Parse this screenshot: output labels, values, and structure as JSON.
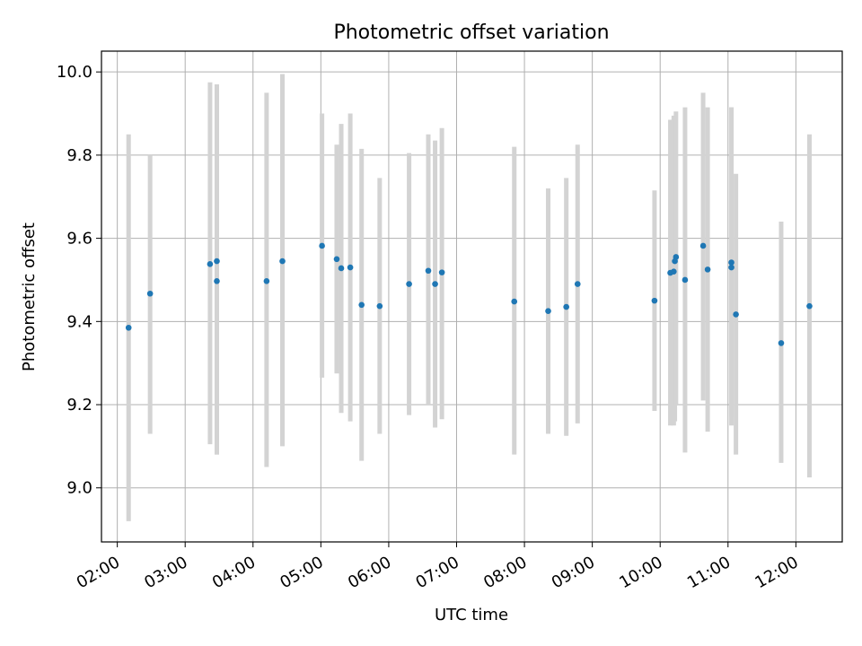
{
  "chart_data": {
    "type": "scatter",
    "title": "Photometric offset variation",
    "xlabel": "UTC time",
    "ylabel": "Photometric offset",
    "x_unit": "UTC time (HH:MM)",
    "xlim": [
      "01:46",
      "12:41"
    ],
    "ylim": [
      8.87,
      10.05
    ],
    "x_ticks": [
      "02:00",
      "03:00",
      "04:00",
      "05:00",
      "06:00",
      "07:00",
      "08:00",
      "09:00",
      "10:00",
      "11:00",
      "12:00"
    ],
    "y_ticks": [
      9.0,
      9.2,
      9.4,
      9.6,
      9.8,
      10.0
    ],
    "y_tick_labels": [
      "9.0",
      "9.2",
      "9.4",
      "9.6",
      "9.8",
      "10.0"
    ],
    "grid": true,
    "error_bar_color": "#d3d3d3",
    "marker_color": "#1f77b4",
    "points": [
      {
        "t": "02:10",
        "y": 9.385,
        "lo": 8.92,
        "hi": 9.85
      },
      {
        "t": "02:29",
        "y": 9.467,
        "lo": 9.13,
        "hi": 9.8
      },
      {
        "t": "03:22",
        "y": 9.538,
        "lo": 9.105,
        "hi": 9.975
      },
      {
        "t": "03:28",
        "y": 9.545,
        "lo": 9.08,
        "hi": 9.97
      },
      {
        "t": "03:28",
        "y": 9.497,
        "lo": 9.08,
        "hi": 9.97
      },
      {
        "t": "04:12",
        "y": 9.497,
        "lo": 9.05,
        "hi": 9.95
      },
      {
        "t": "04:26",
        "y": 9.545,
        "lo": 9.1,
        "hi": 9.995
      },
      {
        "t": "05:01",
        "y": 9.582,
        "lo": 9.265,
        "hi": 9.9
      },
      {
        "t": "05:14",
        "y": 9.55,
        "lo": 9.275,
        "hi": 9.825
      },
      {
        "t": "05:18",
        "y": 9.528,
        "lo": 9.18,
        "hi": 9.875
      },
      {
        "t": "05:26",
        "y": 9.53,
        "lo": 9.16,
        "hi": 9.9
      },
      {
        "t": "05:36",
        "y": 9.44,
        "lo": 9.065,
        "hi": 9.815
      },
      {
        "t": "05:52",
        "y": 9.437,
        "lo": 9.13,
        "hi": 9.745
      },
      {
        "t": "06:18",
        "y": 9.49,
        "lo": 9.175,
        "hi": 9.805
      },
      {
        "t": "06:35",
        "y": 9.522,
        "lo": 9.2,
        "hi": 9.85
      },
      {
        "t": "06:41",
        "y": 9.49,
        "lo": 9.145,
        "hi": 9.835
      },
      {
        "t": "06:47",
        "y": 9.518,
        "lo": 9.165,
        "hi": 9.865
      },
      {
        "t": "07:51",
        "y": 9.448,
        "lo": 9.08,
        "hi": 9.82
      },
      {
        "t": "08:21",
        "y": 9.425,
        "lo": 9.13,
        "hi": 9.72
      },
      {
        "t": "08:37",
        "y": 9.435,
        "lo": 9.125,
        "hi": 9.745
      },
      {
        "t": "08:47",
        "y": 9.49,
        "lo": 9.155,
        "hi": 9.825
      },
      {
        "t": "09:55",
        "y": 9.45,
        "lo": 9.185,
        "hi": 9.715
      },
      {
        "t": "10:09",
        "y": 9.517,
        "lo": 9.15,
        "hi": 9.885
      },
      {
        "t": "10:12",
        "y": 9.52,
        "lo": 9.15,
        "hi": 9.895
      },
      {
        "t": "10:13",
        "y": 9.545,
        "lo": 9.16,
        "hi": 9.89
      },
      {
        "t": "10:14",
        "y": 9.555,
        "lo": 9.2,
        "hi": 9.905
      },
      {
        "t": "10:22",
        "y": 9.5,
        "lo": 9.085,
        "hi": 9.915
      },
      {
        "t": "10:38",
        "y": 9.582,
        "lo": 9.21,
        "hi": 9.95
      },
      {
        "t": "10:42",
        "y": 9.525,
        "lo": 9.135,
        "hi": 9.915
      },
      {
        "t": "11:03",
        "y": 9.53,
        "lo": 9.15,
        "hi": 9.915
      },
      {
        "t": "11:03",
        "y": 9.542,
        "lo": 9.17,
        "hi": 9.915
      },
      {
        "t": "11:07",
        "y": 9.417,
        "lo": 9.08,
        "hi": 9.755
      },
      {
        "t": "11:47",
        "y": 9.348,
        "lo": 9.06,
        "hi": 9.64
      },
      {
        "t": "12:12",
        "y": 9.437,
        "lo": 9.025,
        "hi": 9.85
      }
    ]
  }
}
